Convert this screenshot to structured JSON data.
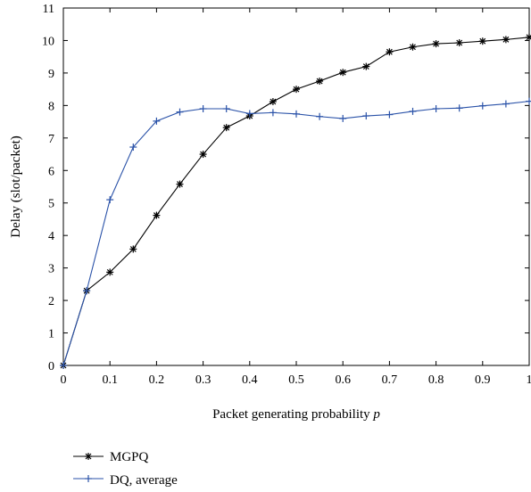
{
  "chart_data": {
    "type": "line",
    "xlabel_prefix": "Packet generating probability ",
    "xlabel_var": "p",
    "ylabel": "Delay (slot/packet)",
    "xlim": [
      0,
      1
    ],
    "ylim": [
      0,
      11
    ],
    "x_ticks": [
      "0",
      "0.1",
      "0.2",
      "0.3",
      "0.4",
      "0.5",
      "0.6",
      "0.7",
      "0.8",
      "0.9",
      "1"
    ],
    "y_ticks": [
      "0",
      "1",
      "2",
      "3",
      "4",
      "5",
      "6",
      "7",
      "8",
      "9",
      "10",
      "11"
    ],
    "grid": false,
    "legend_position": "below-left",
    "x": [
      0,
      0.05,
      0.1,
      0.15,
      0.2,
      0.25,
      0.3,
      0.35,
      0.4,
      0.45,
      0.5,
      0.55,
      0.6,
      0.65,
      0.7,
      0.75,
      0.8,
      0.85,
      0.9,
      0.95,
      1.0
    ],
    "series": [
      {
        "name": "MGPQ",
        "marker": "asterisk",
        "color": "#000000",
        "values": [
          0,
          2.3,
          2.87,
          3.58,
          4.62,
          5.58,
          6.5,
          7.32,
          7.68,
          8.12,
          8.5,
          8.75,
          9.02,
          9.2,
          9.65,
          9.8,
          9.9,
          9.93,
          9.98,
          10.03,
          10.1
        ]
      },
      {
        "name": "DQ, average",
        "marker": "plus",
        "color": "#2a52a8",
        "values": [
          0,
          2.3,
          5.1,
          6.72,
          7.52,
          7.8,
          7.9,
          7.9,
          7.75,
          7.78,
          7.74,
          7.66,
          7.6,
          7.68,
          7.72,
          7.82,
          7.9,
          7.92,
          7.99,
          8.05,
          8.13
        ]
      }
    ]
  }
}
